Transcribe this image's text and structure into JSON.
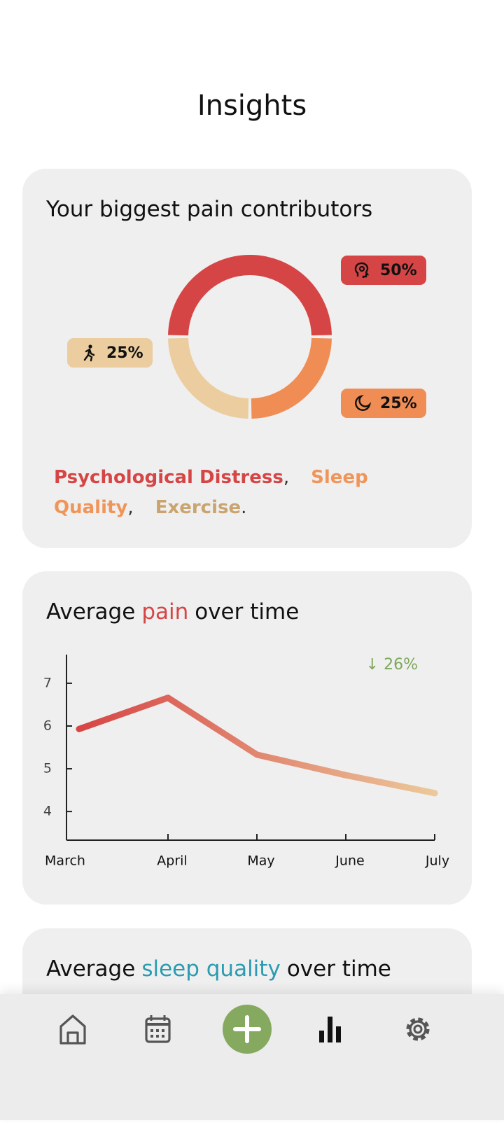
{
  "header": {
    "title": "Insights"
  },
  "contributors_card": {
    "title": "Your biggest pain contributors",
    "separators": [
      ",",
      ",",
      "."
    ],
    "chart_data": {
      "type": "pie",
      "donut": true,
      "categories": [
        "Psychological Distress",
        "Sleep Quality",
        "Exercise"
      ],
      "values": [
        50,
        25,
        25
      ],
      "value_labels": [
        "50%",
        "25%",
        "25%"
      ],
      "colors": [
        "#d64545",
        "#f08d55",
        "#ebcd9f"
      ],
      "text_colors": [
        "#d64545",
        "#f0955a",
        "#c9a46e"
      ]
    }
  },
  "pain_card": {
    "title_parts": [
      "Average",
      "pain",
      "over time"
    ],
    "highlight_color": "#d64545",
    "chart_data": {
      "type": "line",
      "categories": [
        "March",
        "April",
        "May",
        "June",
        "July"
      ],
      "values": [
        5.93,
        6.66,
        5.33,
        4.85,
        4.43
      ],
      "colors": [
        "#d64545",
        "#ecc89a"
      ],
      "ylim": [
        3.33,
        7.67
      ],
      "yticks": [
        4,
        5,
        6,
        7
      ],
      "annotation": "↓ 26%",
      "annotation_color": "#7da85b"
    }
  },
  "sleep_card": {
    "title_parts": [
      "Average",
      "sleep quality",
      "over time"
    ],
    "highlight_color": "#2a9bb0"
  }
}
